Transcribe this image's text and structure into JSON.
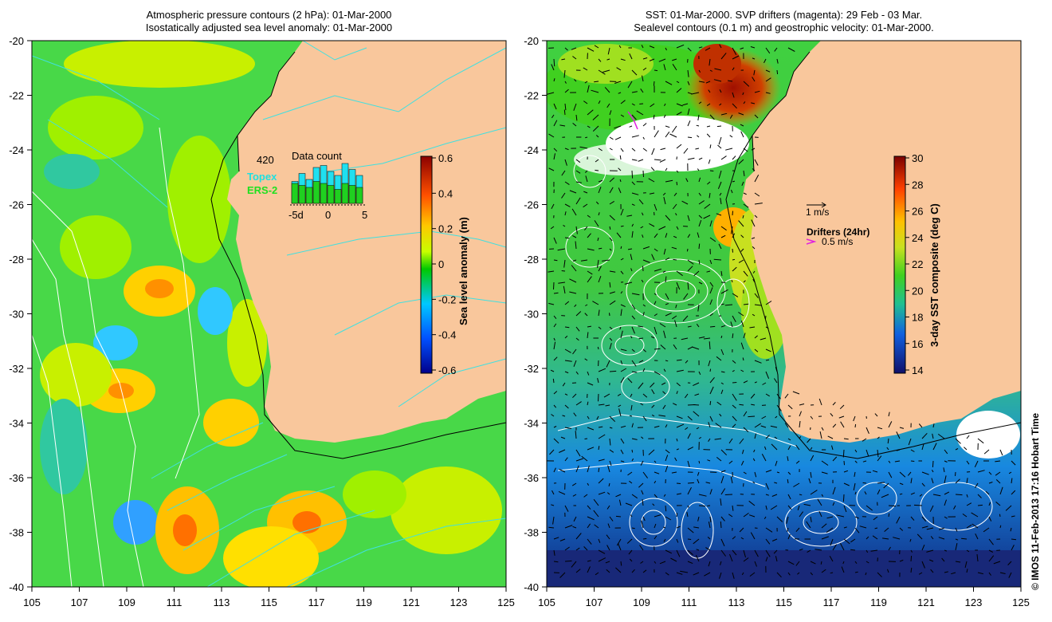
{
  "left_panel": {
    "title_line1": "Atmospheric pressure contours (2 hPa): 01-Mar-2000",
    "title_line2": "Isostatically adjusted sea level anomaly: 01-Mar-2000",
    "colorbar": {
      "label": "Sea level anomaly (m)",
      "ticks": [
        "0.6",
        "0.4",
        "0.2",
        "0",
        "-0.2",
        "-0.4",
        "-0.6"
      ]
    },
    "inset": {
      "title": "Data count",
      "max_label": "420",
      "topex_label": "Topex",
      "ers2_label": "ERS-2",
      "x_ticks": [
        "-5d",
        "0",
        "5"
      ],
      "topex_counts": [
        0.55,
        0.75,
        0.6,
        0.9,
        0.95,
        0.8,
        0.7,
        1.0,
        0.85,
        0.7
      ],
      "ers2_counts": [
        0.5,
        0.45,
        0.4,
        0.55,
        0.5,
        0.45,
        0.35,
        0.5,
        0.45,
        0.4
      ]
    }
  },
  "right_panel": {
    "title_line1": "SST: 01-Mar-2000. SVP drifters (magenta): 29 Feb - 03 Mar.",
    "title_line2": "Sealevel contours (0.1 m) and geostrophic velocity: 01-Mar-2000.",
    "colorbar": {
      "label": "3-day SST composite (deg C)",
      "ticks": [
        "30",
        "28",
        "26",
        "24",
        "22",
        "20",
        "18",
        "16",
        "14"
      ]
    },
    "legend": {
      "velocity_label": "1 m/s",
      "drifters_title": "Drifters (24hr)",
      "drifters_label": "0.5 m/s"
    }
  },
  "axes": {
    "lat_ticks": [
      "-20",
      "-22",
      "-24",
      "-26",
      "-28",
      "-30",
      "-32",
      "-34",
      "-36",
      "-38",
      "-40"
    ],
    "lon_ticks": [
      "105",
      "107",
      "109",
      "111",
      "113",
      "115",
      "117",
      "119",
      "121",
      "123",
      "125"
    ]
  },
  "credit": "© IMOS 11-Feb-2013 17:16 Hobart Time",
  "colors": {
    "land": "#f9c79c",
    "sla_scale": [
      "#00008b",
      "#0050ff",
      "#00c8ff",
      "#00c800",
      "#c8ff00",
      "#ffc800",
      "#ff5000",
      "#8b0000"
    ],
    "sst_scale": [
      "#10106a",
      "#1040e0",
      "#20a0ff",
      "#20c080",
      "#40d020",
      "#c8e020",
      "#ffc000",
      "#ff6000",
      "#a01000"
    ],
    "pressure_contour": "#40e0e0",
    "drifter": "#e020e0"
  }
}
